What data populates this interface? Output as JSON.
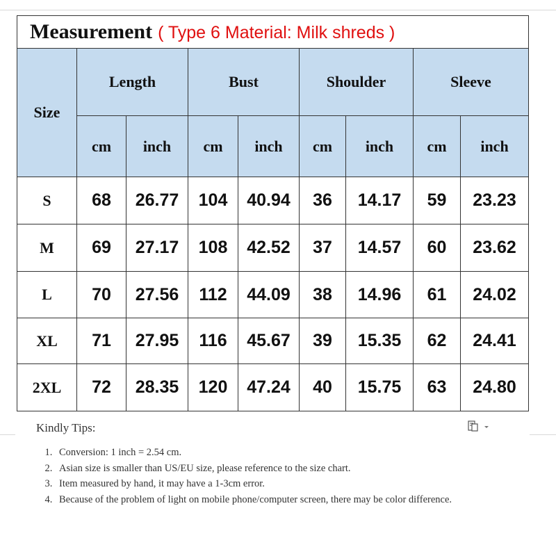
{
  "header": {
    "title": "Measurement",
    "subtitle": "( Type 6 Material: Milk shreds )"
  },
  "table": {
    "size_header": "Size",
    "groups": [
      "Length",
      "Bust",
      "Shoulder",
      "Sleeve"
    ],
    "units": [
      "cm",
      "inch",
      "cm",
      "inch",
      "cm",
      "inch",
      "cm",
      "inch"
    ],
    "rows": [
      [
        "S",
        "68",
        "26.77",
        "104",
        "40.94",
        "36",
        "14.17",
        "59",
        "23.23"
      ],
      [
        "M",
        "69",
        "27.17",
        "108",
        "42.52",
        "37",
        "14.57",
        "60",
        "23.62"
      ],
      [
        "L",
        "70",
        "27.56",
        "112",
        "44.09",
        "38",
        "14.96",
        "61",
        "24.02"
      ],
      [
        "XL",
        "71",
        "27.95",
        "116",
        "45.67",
        "39",
        "15.35",
        "62",
        "24.41"
      ],
      [
        "2XL",
        "72",
        "28.35",
        "120",
        "47.24",
        "40",
        "15.75",
        "63",
        "24.80"
      ]
    ]
  },
  "tips": {
    "title": "Kindly Tips:",
    "items": [
      "Conversion: 1 inch = 2.54 cm.",
      "Asian size is smaller than US/EU size, please reference to the size chart.",
      "Item measured by hand, it may have a 1-3cm error.",
      "Because of the problem of light on mobile phone/computer screen, there may be color difference."
    ]
  }
}
